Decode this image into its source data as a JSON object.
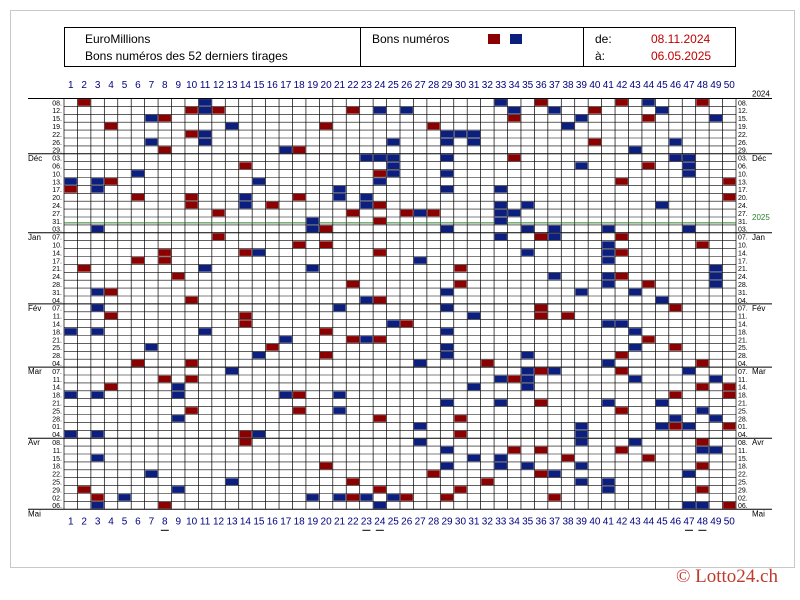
{
  "header": {
    "title": "EuroMillions",
    "subtitle": "Bons numéros des 52 derniers tirages",
    "legend_label": "Bons numéros",
    "legend_colors": [
      "#8b0000",
      "#0c1f7e"
    ],
    "from_label": "de:",
    "from_date": "08.11.2024",
    "to_label": "à:",
    "to_date": "06.05.2025"
  },
  "copyright": "© Lotto24.ch",
  "chart_data": {
    "type": "heatmap",
    "title": "",
    "numbers": [
      1,
      2,
      3,
      4,
      5,
      6,
      7,
      8,
      9,
      10,
      11,
      12,
      13,
      14,
      15,
      16,
      17,
      18,
      19,
      20,
      21,
      22,
      23,
      24,
      25,
      26,
      27,
      28,
      29,
      30,
      31,
      32,
      33,
      34,
      35,
      36,
      37,
      38,
      39,
      40,
      41,
      42,
      43,
      44,
      45,
      46,
      47,
      48,
      49,
      50
    ],
    "year_start": "2024",
    "year_change": "2025",
    "year_change_after_row": 16,
    "months": [
      {
        "label": "Déc",
        "row": 7
      },
      {
        "label": "Jan",
        "row": 17
      },
      {
        "label": "Fév",
        "row": 26
      },
      {
        "label": "Mar",
        "row": 34
      },
      {
        "label": "Avr",
        "row": 43
      },
      {
        "label": "Mai",
        "row": 52
      }
    ],
    "draw_days": [
      "08.",
      "12.",
      "15.",
      "19.",
      "22.",
      "26.",
      "29.",
      "03.",
      "06.",
      "10.",
      "13.",
      "17.",
      "20.",
      "24.",
      "27.",
      "31.",
      "03.",
      "07.",
      "10.",
      "14.",
      "17.",
      "21.",
      "24.",
      "28.",
      "31.",
      "04.",
      "07.",
      "11.",
      "14.",
      "18.",
      "21.",
      "25.",
      "28.",
      "04.",
      "07.",
      "11.",
      "14.",
      "18.",
      "21.",
      "25.",
      "28.",
      "01.",
      "04.",
      "08.",
      "11.",
      "15.",
      "18.",
      "22.",
      "25.",
      "29.",
      "02.",
      "06."
    ],
    "draws": [
      {
        "red": [
          2,
          36,
          42,
          48
        ],
        "blue": [
          11,
          33,
          44
        ]
      },
      {
        "red": [
          10,
          11,
          12,
          22,
          40
        ],
        "blue": [
          11,
          24,
          26,
          34,
          37,
          45
        ]
      },
      {
        "red": [
          8,
          34,
          44
        ],
        "blue": [
          7,
          39,
          49
        ]
      },
      {
        "red": [
          4,
          20,
          28,
          38
        ],
        "blue": [
          13,
          38
        ]
      },
      {
        "red": [
          10
        ],
        "blue": [
          11,
          30,
          29,
          31
        ]
      },
      {
        "red": [
          40
        ],
        "blue": [
          7,
          11,
          25,
          29,
          31,
          46
        ]
      },
      {
        "red": [
          8,
          18
        ],
        "blue": [
          17,
          43
        ]
      },
      {
        "red": [
          34,
          46
        ],
        "blue": [
          23,
          24,
          25,
          29,
          46,
          47
        ]
      },
      {
        "red": [
          14,
          44
        ],
        "blue": [
          25,
          39,
          47
        ]
      },
      {
        "red": [
          24
        ],
        "blue": [
          6,
          25,
          29,
          47
        ]
      },
      {
        "red": [
          4,
          42,
          50
        ],
        "blue": [
          1,
          3,
          15,
          24
        ]
      },
      {
        "red": [
          1
        ],
        "blue": [
          3,
          21,
          29,
          33
        ]
      },
      {
        "red": [
          6,
          10,
          18,
          50
        ],
        "blue": [
          14,
          21,
          23
        ]
      },
      {
        "red": [
          10,
          16,
          24
        ],
        "blue": [
          14,
          23,
          33,
          35,
          45
        ]
      },
      {
        "red": [
          22,
          12,
          26,
          28
        ],
        "blue": [
          27,
          33,
          34
        ]
      },
      {
        "red": [
          24
        ],
        "blue": [
          19,
          33
        ]
      },
      {
        "red": [
          20,
          35
        ],
        "blue": [
          3,
          19,
          29,
          35,
          37,
          41,
          47
        ]
      },
      {
        "red": [
          12,
          36,
          42
        ],
        "blue": [
          33,
          37
        ]
      },
      {
        "red": [
          18,
          20,
          48
        ],
        "blue": [
          41
        ]
      },
      {
        "red": [
          8,
          14,
          24,
          42
        ],
        "blue": [
          15,
          35,
          41
        ]
      },
      {
        "red": [
          6,
          8
        ],
        "blue": [
          27,
          41
        ]
      },
      {
        "red": [
          2,
          30
        ],
        "blue": [
          11,
          19,
          49
        ]
      },
      {
        "red": [
          9,
          42
        ],
        "blue": [
          37,
          41,
          49
        ]
      },
      {
        "red": [
          22,
          30,
          44
        ],
        "blue": [
          41,
          49
        ]
      },
      {
        "red": [
          4
        ],
        "blue": [
          3,
          29,
          39,
          43
        ]
      },
      {
        "red": [
          10,
          24
        ],
        "blue": [
          23,
          45
        ]
      },
      {
        "red": [
          36,
          46
        ],
        "blue": [
          3,
          21,
          29
        ]
      },
      {
        "red": [
          4,
          14,
          36,
          38
        ],
        "blue": [
          31
        ]
      },
      {
        "red": [
          14,
          26
        ],
        "blue": [
          25,
          41,
          42
        ]
      },
      {
        "red": [
          20
        ],
        "blue": [
          1,
          3,
          11,
          29,
          43
        ]
      },
      {
        "red": [
          22,
          24,
          44
        ],
        "blue": [
          17,
          23
        ]
      },
      {
        "red": [
          16,
          46
        ],
        "blue": [
          7,
          29,
          43
        ]
      },
      {
        "red": [
          20,
          42
        ],
        "blue": [
          15,
          29,
          35
        ]
      },
      {
        "red": [
          6,
          10,
          32,
          48
        ],
        "blue": [
          27,
          41
        ]
      },
      {
        "red": [
          36,
          42
        ],
        "blue": [
          13,
          35,
          37,
          47
        ]
      },
      {
        "red": [
          8,
          10,
          34
        ],
        "blue": [
          33,
          35,
          43,
          49
        ]
      },
      {
        "red": [
          4,
          48,
          50
        ],
        "blue": [
          9,
          31,
          35
        ]
      },
      {
        "red": [
          18,
          46,
          50
        ],
        "blue": [
          1,
          3,
          9,
          17,
          21
        ]
      },
      {
        "red": [
          36
        ],
        "blue": [
          29,
          33,
          41,
          45
        ]
      },
      {
        "red": [
          10,
          18,
          42
        ],
        "blue": [
          21,
          48
        ]
      },
      {
        "red": [
          24,
          30
        ],
        "blue": [
          9,
          46,
          49
        ]
      },
      {
        "red": [
          46,
          50
        ],
        "blue": [
          27,
          39,
          45,
          47
        ]
      },
      {
        "red": [
          30,
          14
        ],
        "blue": [
          1,
          3,
          15,
          39
        ]
      },
      {
        "red": [
          14,
          48
        ],
        "blue": [
          27,
          39,
          43
        ]
      },
      {
        "red": [
          34,
          36,
          42
        ],
        "blue": [
          29,
          48,
          49
        ]
      },
      {
        "red": [
          38,
          44
        ],
        "blue": [
          3,
          31,
          33
        ]
      },
      {
        "red": [
          20,
          48
        ],
        "blue": [
          29,
          33,
          35,
          39
        ]
      },
      {
        "red": [
          28,
          36
        ],
        "blue": [
          7,
          37,
          47
        ]
      },
      {
        "red": [
          22,
          32
        ],
        "blue": [
          13,
          39,
          41
        ]
      },
      {
        "red": [
          2,
          24,
          30,
          48
        ],
        "blue": [
          9,
          41
        ]
      },
      {
        "red": [
          3,
          22,
          26,
          29,
          37
        ],
        "blue": [
          5,
          19,
          21,
          23,
          25
        ]
      },
      {
        "red": [
          8,
          50
        ],
        "blue": [
          3,
          24,
          47,
          48
        ]
      }
    ],
    "underlined_numbers": [
      8,
      23,
      24,
      47,
      48
    ]
  }
}
